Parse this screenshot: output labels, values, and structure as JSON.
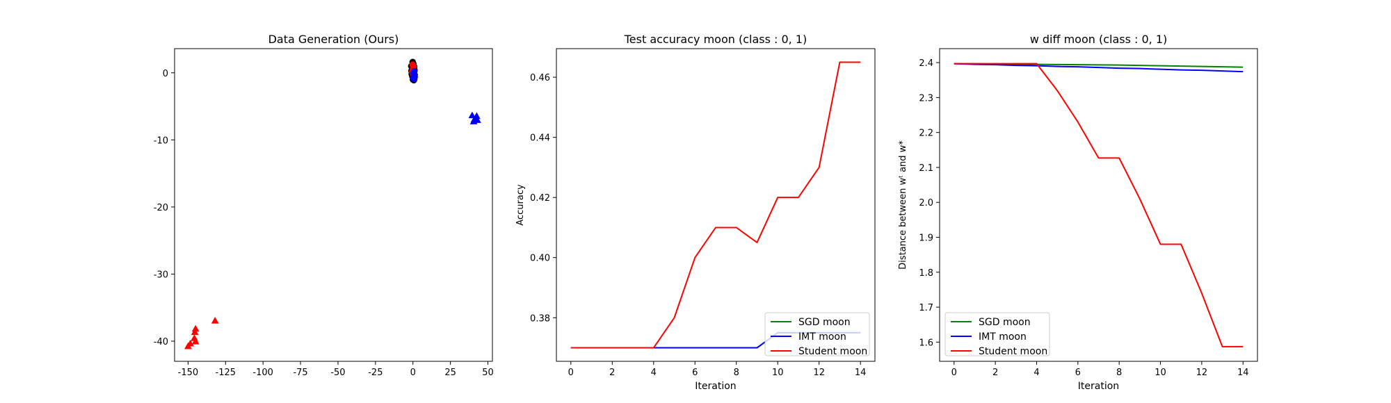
{
  "colors": {
    "green": "#008000",
    "blue": "#0000ff",
    "red": "#ff0000",
    "black": "#000000"
  },
  "chart_data": [
    {
      "type": "scatter",
      "title": "Data Generation (Ours)",
      "xlabel": "",
      "ylabel": "",
      "xlim": [
        -159,
        53
      ],
      "ylim": [
        -43,
        3.6
      ],
      "xticks": [
        -150,
        -125,
        -100,
        -75,
        -50,
        -25,
        0,
        25,
        50
      ],
      "yticks": [
        0,
        -10,
        -20,
        -30,
        -40
      ],
      "series": [
        {
          "marker": "circle",
          "color": "black",
          "points": [
            [
              0,
              0
            ],
            [
              -0.5,
              0.8
            ],
            [
              0.5,
              -0.6
            ],
            [
              -1,
              0.3
            ],
            [
              1,
              0.4
            ],
            [
              0,
              -1
            ],
            [
              0.3,
              1.3
            ],
            [
              -0.4,
              -0.5
            ],
            [
              0.8,
              0.9
            ],
            [
              -0.8,
              -0.2
            ],
            [
              0.2,
              0.2
            ],
            [
              0.6,
              -1.1
            ],
            [
              -0.2,
              1.6
            ],
            [
              1.1,
              -0.3
            ],
            [
              -1.1,
              1
            ],
            [
              0.1,
              -0.3
            ]
          ]
        },
        {
          "marker": "circle",
          "color": "red",
          "points": [
            [
              0,
              0.5
            ],
            [
              -0.2,
              1.2
            ],
            [
              0.3,
              0.9
            ],
            [
              -0.4,
              0.2
            ],
            [
              0.2,
              -0.2
            ]
          ]
        },
        {
          "marker": "circle",
          "color": "blue",
          "points": [
            [
              0.5,
              0
            ],
            [
              0.7,
              -0.3
            ],
            [
              0.9,
              0.2
            ],
            [
              1.1,
              -0.6
            ],
            [
              0.4,
              -0.8
            ],
            [
              0.9,
              -0.9
            ]
          ]
        },
        {
          "marker": "triangle",
          "color": "blue",
          "points": [
            [
              39.5,
              -6.4
            ],
            [
              41,
              -7
            ],
            [
              42.5,
              -6.5
            ],
            [
              40.5,
              -7.3
            ],
            [
              43,
              -7.1
            ]
          ]
        },
        {
          "marker": "triangle",
          "color": "red",
          "points": [
            [
              -132,
              -37
            ],
            [
              -145,
              -38.2
            ],
            [
              -145.5,
              -38.7
            ],
            [
              -145.8,
              -39.6
            ],
            [
              -145,
              -40.1
            ],
            [
              -148.5,
              -40.4
            ],
            [
              -150,
              -40.8
            ]
          ]
        }
      ]
    },
    {
      "type": "line",
      "title": "Test accuracy moon (class : 0, 1)",
      "xlabel": "Iteration",
      "ylabel": "Accuracy",
      "xlim": [
        -0.7,
        14.7
      ],
      "ylim": [
        0.3655,
        0.4695
      ],
      "xticks": [
        0,
        2,
        4,
        6,
        8,
        10,
        12,
        14
      ],
      "yticks": [
        0.38,
        0.4,
        0.42,
        0.44,
        0.46
      ],
      "ytick_labels": [
        "0.38",
        "0.40",
        "0.42",
        "0.44",
        "0.46"
      ],
      "x": [
        0,
        1,
        2,
        3,
        4,
        5,
        6,
        7,
        8,
        9,
        10,
        11,
        12,
        13,
        14
      ],
      "series": [
        {
          "name": "SGD moon",
          "color": "green",
          "values": [
            0.37,
            0.37,
            0.37,
            0.37,
            0.37,
            0.37,
            0.37,
            0.37,
            0.37,
            0.37,
            0.375,
            0.375,
            0.375,
            0.375,
            0.375
          ]
        },
        {
          "name": "IMT moon",
          "color": "blue",
          "values": [
            0.37,
            0.37,
            0.37,
            0.37,
            0.37,
            0.37,
            0.37,
            0.37,
            0.37,
            0.37,
            0.375,
            0.375,
            0.375,
            0.375,
            0.375
          ]
        },
        {
          "name": "Student moon",
          "color": "red",
          "values": [
            0.37,
            0.37,
            0.37,
            0.37,
            0.37,
            0.38,
            0.4,
            0.41,
            0.41,
            0.405,
            0.42,
            0.42,
            0.43,
            0.465,
            0.465
          ]
        }
      ],
      "legend": "lower-right"
    },
    {
      "type": "line",
      "title": "w diff moon (class : 0, 1)",
      "xlabel": "Iteration",
      "ylabel": "Distance between wᵗ and w*",
      "xlim": [
        -0.7,
        14.7
      ],
      "ylim": [
        1.545,
        2.44
      ],
      "xticks": [
        0,
        2,
        4,
        6,
        8,
        10,
        12,
        14
      ],
      "yticks": [
        1.6,
        1.7,
        1.8,
        1.9,
        2.0,
        2.1,
        2.2,
        2.3,
        2.4
      ],
      "ytick_labels": [
        "1.6",
        "1.7",
        "1.8",
        "1.9",
        "2.0",
        "2.1",
        "2.2",
        "2.3",
        "2.4"
      ],
      "x": [
        0,
        1,
        2,
        3,
        4,
        5,
        6,
        7,
        8,
        9,
        10,
        11,
        12,
        13,
        14
      ],
      "series": [
        {
          "name": "SGD moon",
          "color": "green",
          "values": [
            2.397,
            2.3965,
            2.396,
            2.3955,
            2.395,
            2.3945,
            2.394,
            2.3935,
            2.393,
            2.392,
            2.391,
            2.39,
            2.389,
            2.388,
            2.387
          ]
        },
        {
          "name": "IMT moon",
          "color": "blue",
          "values": [
            2.397,
            2.395,
            2.394,
            2.392,
            2.391,
            2.389,
            2.388,
            2.386,
            2.384,
            2.383,
            2.381,
            2.379,
            2.378,
            2.376,
            2.374
          ]
        },
        {
          "name": "Student moon",
          "color": "red",
          "values": [
            2.397,
            2.397,
            2.397,
            2.397,
            2.397,
            2.32,
            2.23,
            2.127,
            2.127,
            2.01,
            1.88,
            1.88,
            1.74,
            1.587,
            1.587
          ]
        }
      ],
      "legend": "lower-left"
    }
  ]
}
